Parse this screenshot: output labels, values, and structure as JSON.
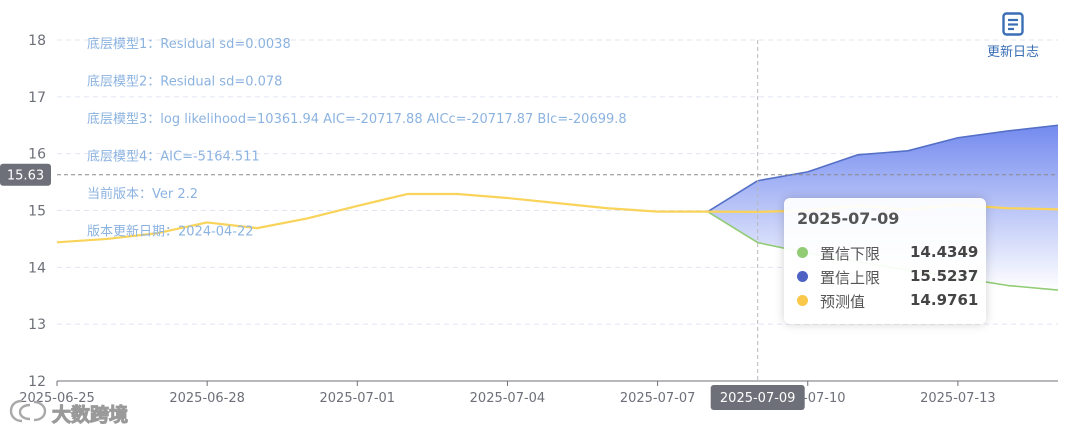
{
  "chart_data": {
    "type": "line",
    "x": [
      "2025-06-25",
      "2025-06-26",
      "2025-06-27",
      "2025-06-28",
      "2025-06-29",
      "2025-06-30",
      "2025-07-01",
      "2025-07-02",
      "2025-07-03",
      "2025-07-04",
      "2025-07-05",
      "2025-07-06",
      "2025-07-07",
      "2025-07-08",
      "2025-07-09",
      "2025-07-10",
      "2025-07-11",
      "2025-07-12",
      "2025-07-13",
      "2025-07-14",
      "2025-07-15"
    ],
    "x_tick_labels": [
      "2025-06-25",
      "2025-06-28",
      "2025-07-01",
      "2025-07-04",
      "2025-07-07",
      "2025-07-10",
      "2025-07-13"
    ],
    "y_tick_labels": [
      "12",
      "13",
      "14",
      "15",
      "16",
      "17",
      "18"
    ],
    "ylim": [
      12,
      18
    ],
    "grid": true,
    "series": [
      {
        "name": "置信下限",
        "color": "#91cc75",
        "start_index": 13,
        "values": [
          null,
          null,
          null,
          null,
          null,
          null,
          null,
          null,
          null,
          null,
          null,
          null,
          null,
          14.98,
          14.4349,
          14.25,
          14.1,
          13.95,
          13.82,
          13.68,
          13.6
        ]
      },
      {
        "name": "置信上限",
        "color": "#5470c6",
        "start_index": 13,
        "values": [
          null,
          null,
          null,
          null,
          null,
          null,
          null,
          null,
          null,
          null,
          null,
          null,
          null,
          14.98,
          15.5237,
          15.68,
          15.98,
          16.05,
          16.28,
          16.4,
          16.5
        ]
      },
      {
        "name": "预测值",
        "color": "#f9d35a",
        "values": [
          14.44,
          14.5,
          14.6,
          14.79,
          14.69,
          14.86,
          15.08,
          15.29,
          15.29,
          15.22,
          15.13,
          15.04,
          14.98,
          14.98,
          14.9761,
          15.0,
          15.08,
          15.02,
          15.1,
          15.04,
          15.02
        ]
      }
    ],
    "band_fill_top": "#6c84ee",
    "band_fill_bottom": "#ffffff",
    "crosshair": {
      "x_label": "2025-07-09",
      "y_label": "15.63",
      "y_value": 15.63
    }
  },
  "annotations": [
    "底层模型1：Residual sd=0.0038",
    "底层模型2：Residual sd=0.078",
    "底层模型3：log likelihood=10361.94 AIC=-20717.88 AICc=-20717.87 BIc=-20699.8",
    "底层模型4：AIC=-5164.511",
    "当前版本：Ver 2.2",
    "版本更新日期：2024-04-22"
  ],
  "annotation_color": "#8cb3e0",
  "tooltip": {
    "title": "2025-07-09",
    "rows": [
      {
        "name": "置信下限",
        "value": "14.4349",
        "color": "#91cc75"
      },
      {
        "name": "置信上限",
        "value": "15.5237",
        "color": "#4e62c4"
      },
      {
        "name": "预测值",
        "value": "14.9761",
        "color": "#f9c84a"
      }
    ]
  },
  "update_button": {
    "label": "更新日志",
    "icon": "document-icon"
  },
  "watermark": {
    "text": "大数跨境"
  }
}
